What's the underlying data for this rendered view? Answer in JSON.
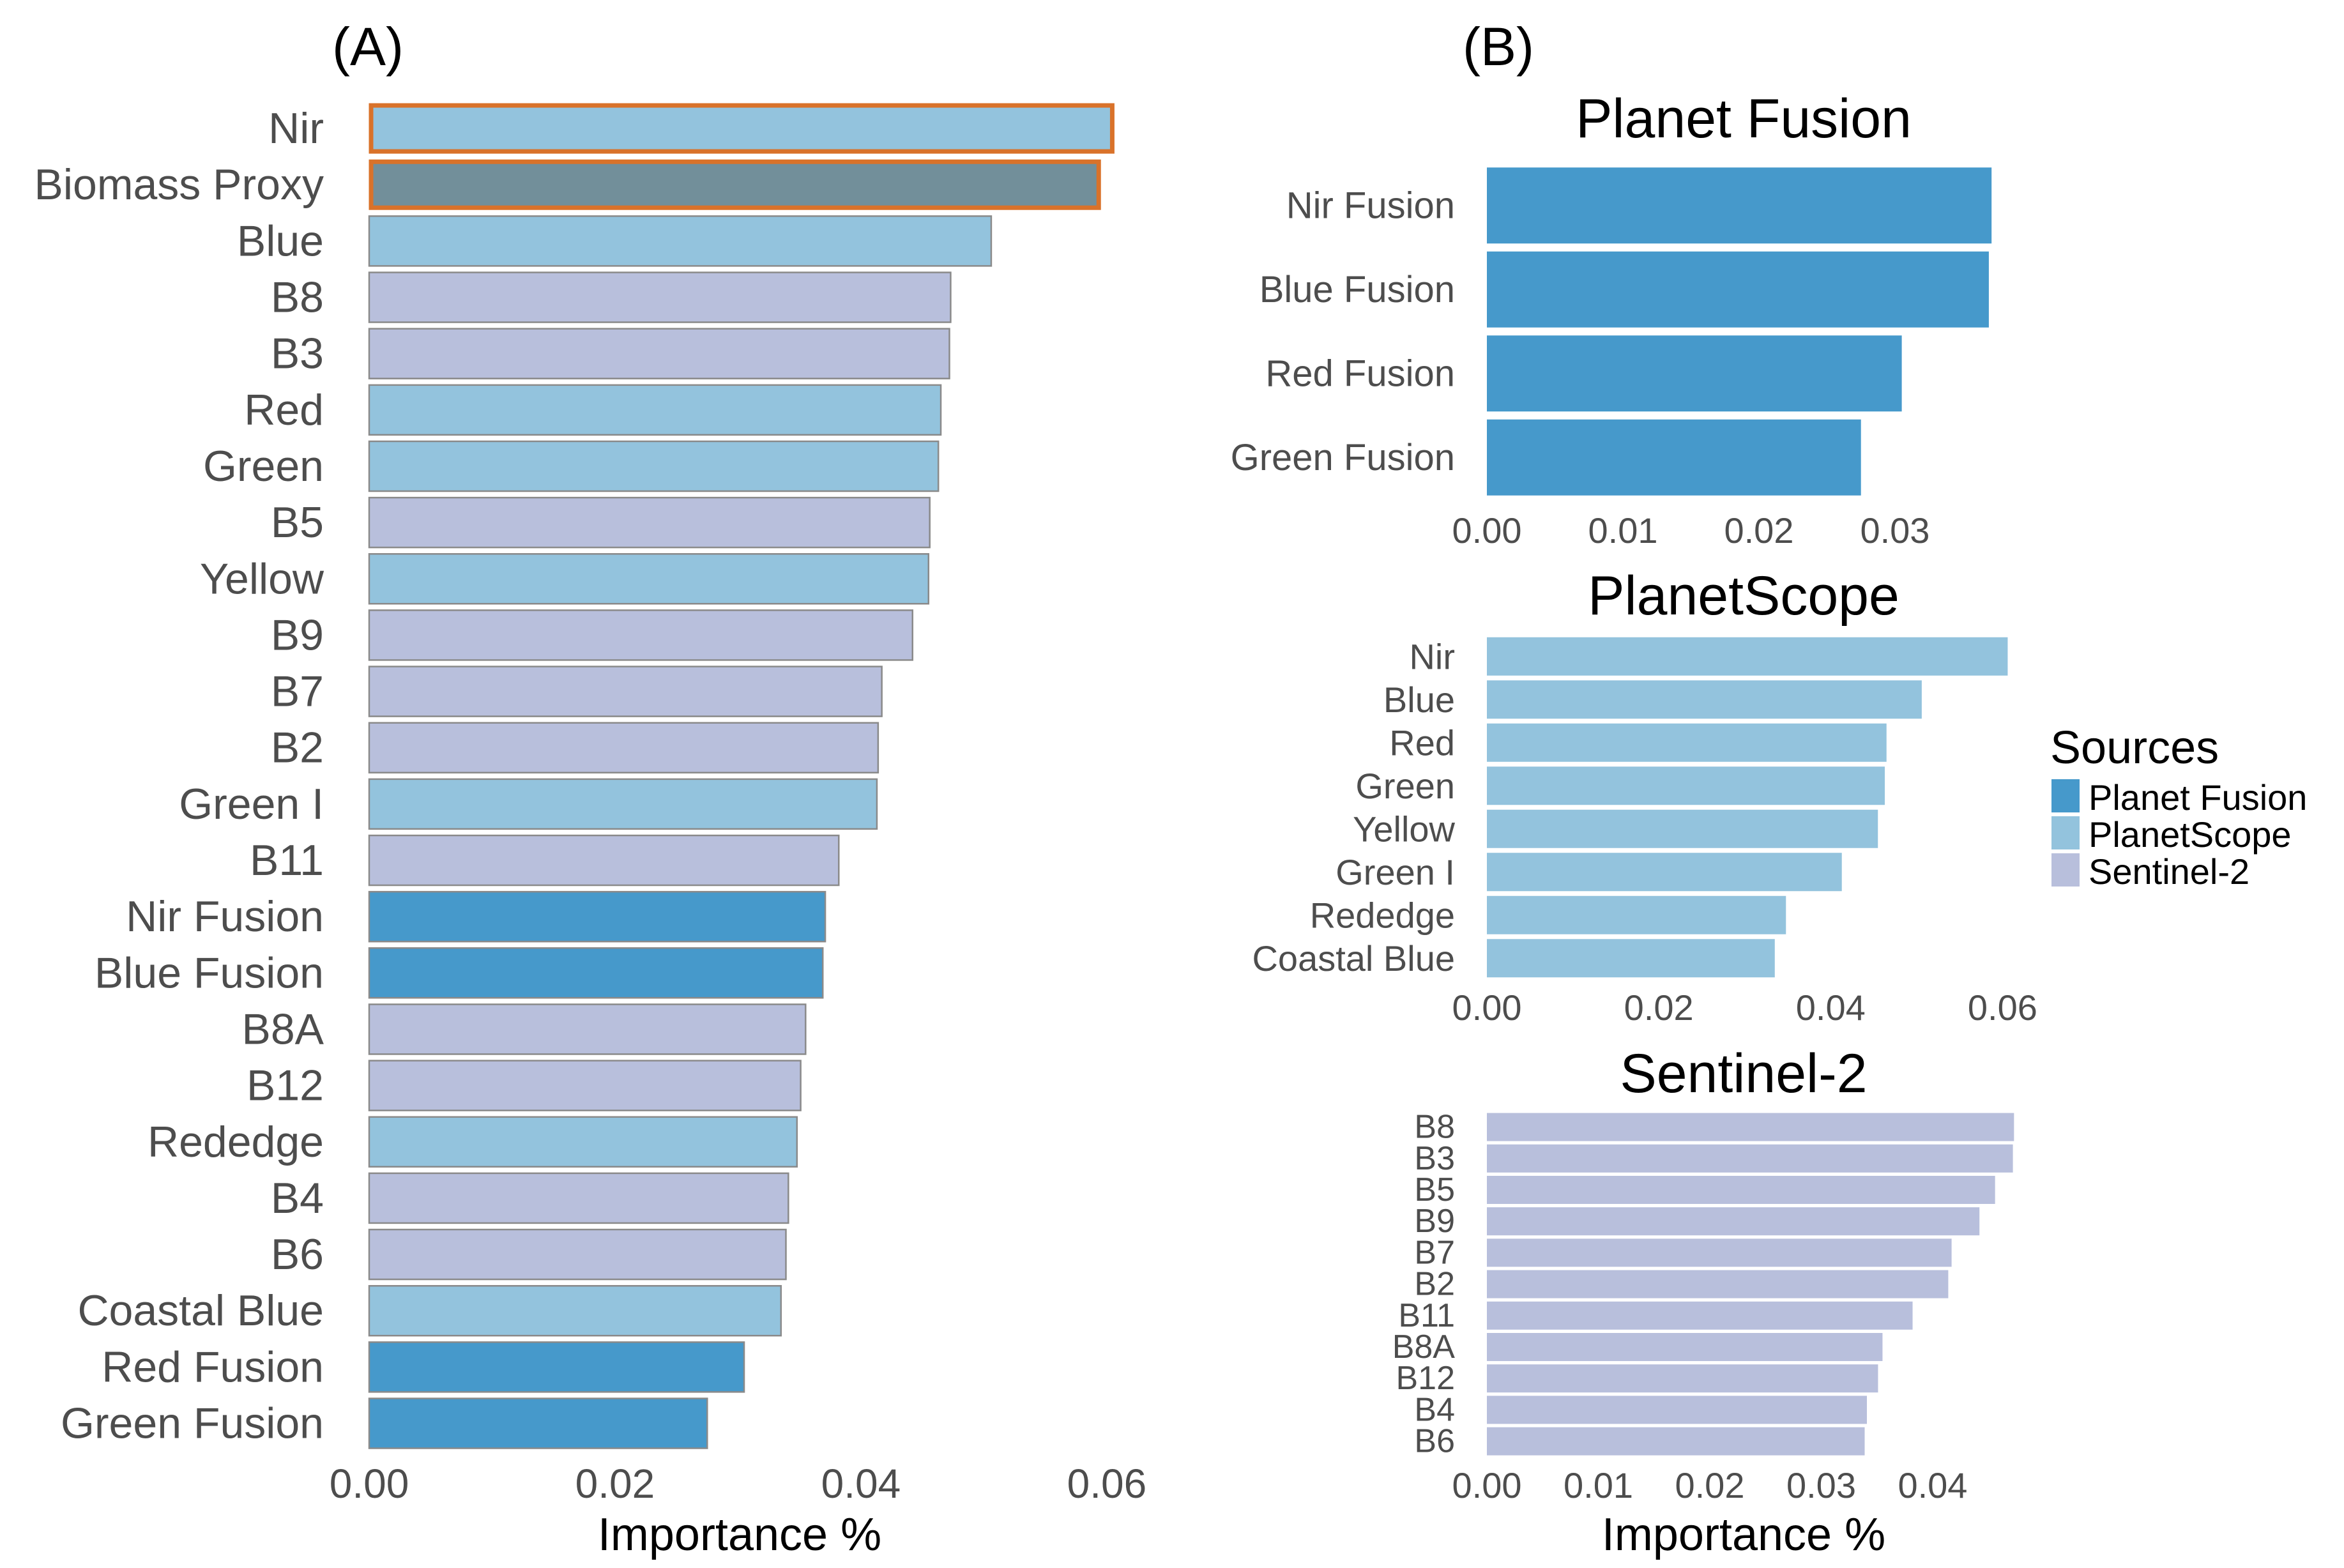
{
  "colors": {
    "Planet Fusion": "#4699CB",
    "PlanetScope": "#93C3DD",
    "Sentinel-2": "#B8BFDC",
    "Biomass Proxy": "#728F9A",
    "highlight_outline": "#D9722A",
    "bar_outline": "#8A8A8A"
  },
  "legend": {
    "title": "Sources",
    "items": [
      "Planet Fusion",
      "PlanetScope",
      "Sentinel-2"
    ]
  },
  "chart_data": [
    {
      "id": "A",
      "panel_label": "(A)",
      "type": "bar",
      "orientation": "horizontal",
      "xlabel": "Importance %",
      "xlim": [
        0,
        0.0625
      ],
      "xticks": [
        0,
        0.02,
        0.04,
        0.06
      ],
      "xtick_labels": [
        "0.00",
        "0.02",
        "0.04",
        "0.06"
      ],
      "categories": [
        "Nir",
        "Biomass Proxy",
        "Blue",
        "B8",
        "B3",
        "Red",
        "Green",
        "B5",
        "Yellow",
        "B9",
        "B7",
        "B2",
        "Green I",
        "B11",
        "Nir Fusion",
        "Blue Fusion",
        "B8A",
        "B12",
        "Rededge",
        "B4",
        "B6",
        "Coastal Blue",
        "Red Fusion",
        "Green Fusion"
      ],
      "values": [
        0.0606,
        0.0595,
        0.0506,
        0.0473,
        0.0472,
        0.0465,
        0.0463,
        0.0456,
        0.0455,
        0.0442,
        0.0417,
        0.0414,
        0.0413,
        0.0382,
        0.0371,
        0.0369,
        0.0355,
        0.0351,
        0.0348,
        0.0341,
        0.0339,
        0.0335,
        0.0305,
        0.0275
      ],
      "sources": [
        "PlanetScope",
        "Biomass Proxy",
        "PlanetScope",
        "Sentinel-2",
        "Sentinel-2",
        "PlanetScope",
        "PlanetScope",
        "Sentinel-2",
        "PlanetScope",
        "Sentinel-2",
        "Sentinel-2",
        "Sentinel-2",
        "PlanetScope",
        "Sentinel-2",
        "Planet Fusion",
        "Planet Fusion",
        "Sentinel-2",
        "Sentinel-2",
        "PlanetScope",
        "Sentinel-2",
        "Sentinel-2",
        "PlanetScope",
        "Planet Fusion",
        "Planet Fusion"
      ],
      "highlighted": [
        "Nir",
        "Biomass Proxy"
      ]
    },
    {
      "id": "B1",
      "panel_label": "(B)",
      "title": "Planet Fusion",
      "type": "bar",
      "orientation": "horizontal",
      "source": "Planet Fusion",
      "xlim": [
        0,
        0.0385
      ],
      "xticks": [
        0,
        0.01,
        0.02,
        0.03
      ],
      "xtick_labels": [
        "0.00",
        "0.01",
        "0.02",
        "0.03"
      ],
      "categories": [
        "Nir Fusion",
        "Blue Fusion",
        "Red Fusion",
        "Green Fusion"
      ],
      "values": [
        0.0371,
        0.0369,
        0.0305,
        0.0275
      ]
    },
    {
      "id": "B2",
      "title": "PlanetScope",
      "type": "bar",
      "orientation": "horizontal",
      "source": "PlanetScope",
      "xlim": [
        0,
        0.0625
      ],
      "xticks": [
        0,
        0.02,
        0.04,
        0.06
      ],
      "xtick_labels": [
        "0.00",
        "0.02",
        "0.04",
        "0.06"
      ],
      "categories": [
        "Nir",
        "Blue",
        "Red",
        "Green",
        "Yellow",
        "Green I",
        "Rededge",
        "Coastal Blue"
      ],
      "values": [
        0.0606,
        0.0506,
        0.0465,
        0.0463,
        0.0455,
        0.0413,
        0.0348,
        0.0335
      ]
    },
    {
      "id": "B3",
      "title": "Sentinel-2",
      "type": "bar",
      "orientation": "horizontal",
      "source": "Sentinel-2",
      "xlabel": "Importance %",
      "xlim": [
        0,
        0.049
      ],
      "xticks": [
        0,
        0.01,
        0.02,
        0.03,
        0.04
      ],
      "xtick_labels": [
        "0.00",
        "0.01",
        "0.02",
        "0.03",
        "0.04"
      ],
      "categories": [
        "B8",
        "B3",
        "B5",
        "B9",
        "B7",
        "B2",
        "B11",
        "B8A",
        "B12",
        "B4",
        "B6"
      ],
      "values": [
        0.0473,
        0.0472,
        0.0456,
        0.0442,
        0.0417,
        0.0414,
        0.0382,
        0.0355,
        0.0351,
        0.0341,
        0.0339
      ]
    }
  ]
}
